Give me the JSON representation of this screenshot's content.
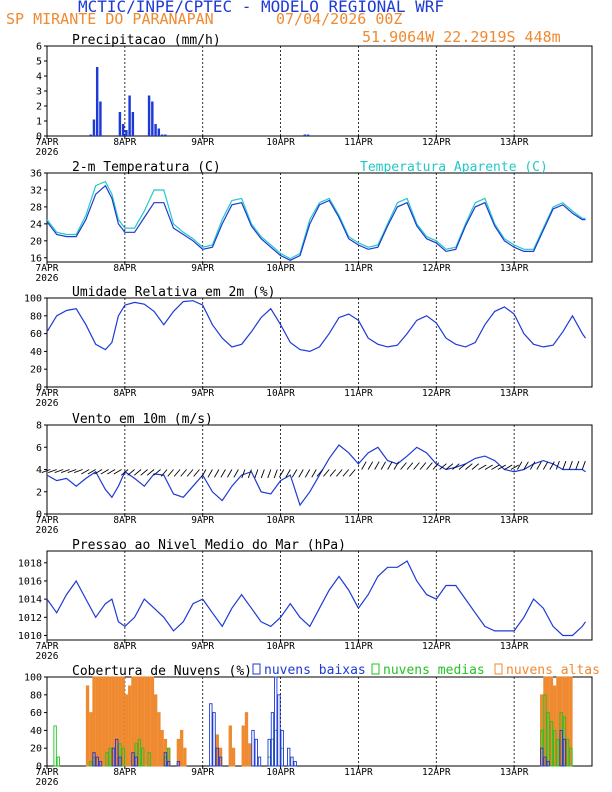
{
  "header": {
    "line1": "MCTIC/INPE/CPTEC - MODELO REGIONAL WRF",
    "station": "SP MIRANTE DO PARANAPAN",
    "datetime": "07/04/2026 00Z",
    "coords": "51.9064W 22.2919S 448m"
  },
  "colors": {
    "blue": "#1d3ad6",
    "orange": "#f08a30",
    "cyan": "#22c8c8",
    "green": "#22c322",
    "black": "#000000"
  },
  "axis": {
    "day_labels": [
      "7APR",
      "8APR",
      "9APR",
      "10APR",
      "11APR",
      "12APR",
      "13APR"
    ],
    "year_label": "2026"
  },
  "chart_data": [
    {
      "id": "precip",
      "type": "bar",
      "title": "Precipitacao (mm/h)",
      "x_unit": "hours since 07/04/2026 00Z",
      "ylim": [
        0,
        6
      ],
      "yticks": [
        0,
        1,
        2,
        3,
        4,
        5,
        6
      ],
      "x": [
        13,
        14,
        15,
        16,
        22,
        23,
        24,
        25,
        26,
        31,
        32,
        33,
        34,
        35,
        36,
        79,
        80
      ],
      "values": [
        0.1,
        1.1,
        4.6,
        2.3,
        1.6,
        0.8,
        0.4,
        2.7,
        1.6,
        2.7,
        2.3,
        0.8,
        0.5,
        0.1,
        0.1,
        0.1,
        0.1
      ]
    },
    {
      "id": "temp",
      "type": "line",
      "title": "2-m Temperatura (C)",
      "ylim": [
        15,
        36
      ],
      "yticks": [
        16,
        20,
        24,
        28,
        32,
        36
      ],
      "series": [
        {
          "name": "Temperatura Aparente (C)",
          "color": "cyan",
          "x": [
            0,
            3,
            6,
            9,
            12,
            15,
            18,
            20,
            22,
            24,
            27,
            30,
            33,
            36,
            39,
            42,
            45,
            48,
            51,
            54,
            57,
            60,
            63,
            66,
            69,
            72,
            75,
            78,
            81,
            84,
            87,
            90,
            93,
            96,
            99,
            102,
            105,
            108,
            111,
            114,
            117,
            120,
            123,
            126,
            129,
            132,
            135,
            138,
            141,
            144,
            147,
            150,
            153,
            156,
            159,
            162,
            165,
            166
          ],
          "values": [
            25,
            22,
            21.5,
            21.5,
            26,
            33,
            34,
            31,
            25,
            23,
            23,
            27,
            32,
            32,
            24,
            22,
            20.5,
            18.5,
            19,
            25,
            29.5,
            30,
            24,
            21,
            19,
            17,
            15.8,
            17,
            25,
            29,
            30,
            26,
            21,
            19.5,
            18.5,
            19,
            24,
            29,
            30,
            24,
            21,
            20,
            18,
            18.5,
            24,
            29,
            30,
            24,
            20.5,
            19,
            18,
            18,
            23,
            28,
            29,
            27,
            25.3,
            25.3
          ]
        },
        {
          "name": "",
          "color": "blue",
          "x": [
            0,
            3,
            6,
            9,
            12,
            15,
            18,
            20,
            22,
            24,
            27,
            30,
            33,
            36,
            39,
            42,
            45,
            48,
            51,
            54,
            57,
            60,
            63,
            66,
            69,
            72,
            75,
            78,
            81,
            84,
            87,
            90,
            93,
            96,
            99,
            102,
            105,
            108,
            111,
            114,
            117,
            120,
            123,
            126,
            129,
            132,
            135,
            138,
            141,
            144,
            147,
            150,
            153,
            156,
            159,
            162,
            165,
            166
          ],
          "values": [
            24.5,
            21.5,
            21,
            21,
            25,
            31,
            33,
            30,
            24,
            22,
            22,
            25.5,
            29,
            29,
            23,
            21.5,
            20,
            18,
            18.5,
            24,
            28.5,
            29,
            23.5,
            20.5,
            18.5,
            16.5,
            15.4,
            16.5,
            24,
            28.5,
            29.5,
            25.5,
            20.5,
            19,
            18,
            18.5,
            23.5,
            28,
            29,
            23.5,
            20.5,
            19.5,
            17.5,
            18,
            23.5,
            28,
            29,
            23.5,
            20,
            18.5,
            17.5,
            17.5,
            22.5,
            27.5,
            28.5,
            26.5,
            25,
            25
          ]
        }
      ]
    },
    {
      "id": "rh",
      "type": "line",
      "title": "Umidade Relativa em 2m (%)",
      "ylim": [
        0,
        100
      ],
      "yticks": [
        0,
        20,
        40,
        60,
        80,
        100
      ],
      "series": [
        {
          "name": "",
          "color": "blue",
          "x": [
            0,
            3,
            6,
            9,
            12,
            15,
            18,
            20,
            22,
            24,
            27,
            30,
            33,
            36,
            39,
            42,
            45,
            48,
            51,
            54,
            57,
            60,
            63,
            66,
            69,
            72,
            75,
            78,
            81,
            84,
            87,
            90,
            93,
            96,
            99,
            102,
            105,
            108,
            111,
            114,
            117,
            120,
            123,
            126,
            129,
            132,
            135,
            138,
            141,
            144,
            147,
            150,
            153,
            156,
            159,
            162,
            165,
            166
          ],
          "values": [
            62,
            80,
            86,
            88,
            70,
            48,
            42,
            50,
            80,
            92,
            95,
            93,
            85,
            70,
            85,
            96,
            97,
            92,
            70,
            55,
            45,
            48,
            62,
            78,
            88,
            70,
            50,
            42,
            40,
            45,
            60,
            78,
            82,
            75,
            55,
            48,
            45,
            47,
            60,
            75,
            80,
            72,
            55,
            48,
            45,
            50,
            70,
            85,
            90,
            82,
            60,
            48,
            45,
            47,
            62,
            80,
            60,
            55
          ]
        }
      ]
    },
    {
      "id": "wind",
      "type": "line",
      "title": "Vento em 10m (m/s)",
      "ylim": [
        0,
        8
      ],
      "yticks": [
        0,
        2,
        4,
        6,
        8
      ],
      "series": [
        {
          "name": "",
          "color": "blue",
          "x": [
            0,
            3,
            6,
            9,
            12,
            15,
            18,
            20,
            22,
            24,
            27,
            30,
            33,
            36,
            39,
            42,
            45,
            48,
            51,
            54,
            57,
            60,
            63,
            66,
            69,
            72,
            75,
            78,
            81,
            84,
            87,
            90,
            93,
            96,
            99,
            102,
            105,
            108,
            111,
            114,
            117,
            120,
            123,
            126,
            129,
            132,
            135,
            138,
            141,
            144,
            147,
            150,
            153,
            156,
            159,
            162,
            165,
            166
          ],
          "values": [
            3.5,
            3,
            3.2,
            2.5,
            3.2,
            3.8,
            2.2,
            1.5,
            2.5,
            3.8,
            3.2,
            2.5,
            3.6,
            3.5,
            1.8,
            1.5,
            2.5,
            3.5,
            2,
            1.2,
            2.5,
            3.5,
            3.8,
            2,
            1.8,
            3,
            3.5,
            0.8,
            2,
            3.5,
            5,
            6.2,
            5.5,
            4.5,
            5.5,
            6,
            4.8,
            4.5,
            5.2,
            6,
            5.5,
            4.5,
            4,
            4.2,
            4.5,
            5,
            5.2,
            4.8,
            4,
            3.8,
            4,
            4.5,
            4.8,
            4.5,
            4,
            4,
            4,
            3.8
          ]
        }
      ]
    },
    {
      "id": "pressure",
      "type": "line",
      "title": "Pressao ao Nivel Medio do Mar (hPa)",
      "ylim": [
        1009.5,
        1019.3
      ],
      "yticks": [
        1010,
        1012,
        1014,
        1016,
        1018
      ],
      "series": [
        {
          "name": "",
          "color": "blue",
          "x": [
            0,
            3,
            6,
            9,
            12,
            15,
            18,
            20,
            22,
            24,
            27,
            30,
            33,
            36,
            39,
            42,
            45,
            48,
            51,
            54,
            57,
            60,
            63,
            66,
            69,
            72,
            75,
            78,
            81,
            84,
            87,
            90,
            93,
            96,
            99,
            102,
            105,
            108,
            111,
            114,
            117,
            120,
            123,
            126,
            129,
            132,
            135,
            138,
            141,
            144,
            147,
            150,
            153,
            156,
            159,
            162,
            165,
            166
          ],
          "values": [
            1014,
            1012.5,
            1014.5,
            1016,
            1014,
            1012,
            1013.5,
            1014,
            1011.5,
            1011,
            1012,
            1014,
            1013,
            1012,
            1010.5,
            1011.5,
            1013.5,
            1014,
            1012.5,
            1011,
            1013,
            1014.5,
            1013,
            1011.5,
            1011,
            1012,
            1013.5,
            1012,
            1011,
            1013,
            1015,
            1016.5,
            1015,
            1013,
            1014.5,
            1016.5,
            1017.5,
            1017.5,
            1018.2,
            1016,
            1014.5,
            1014,
            1015.5,
            1015.5,
            1014,
            1012.5,
            1011,
            1010.5,
            1010.5,
            1010.5,
            1012,
            1014,
            1013,
            1011,
            1010,
            1010,
            1011,
            1011.5
          ]
        }
      ]
    },
    {
      "id": "clouds",
      "type": "bar",
      "title": "Cobertura de Nuvens (%)",
      "ylim": [
        0,
        100
      ],
      "yticks": [
        0,
        20,
        40,
        60,
        80,
        100
      ],
      "series": [
        {
          "name": "nuvens baixas",
          "color": "blue",
          "x": [
            14,
            15,
            16,
            20,
            21,
            22,
            26,
            27,
            36,
            37,
            40,
            50,
            51,
            52,
            53,
            63,
            64,
            65,
            68,
            69,
            70,
            71,
            72,
            74,
            75,
            76,
            152,
            153,
            154,
            158,
            159
          ],
          "values": [
            15,
            10,
            5,
            20,
            30,
            10,
            15,
            10,
            15,
            5,
            5,
            70,
            60,
            20,
            10,
            40,
            30,
            10,
            30,
            60,
            100,
            80,
            40,
            20,
            10,
            5,
            20,
            10,
            5,
            40,
            30
          ]
        },
        {
          "name": "nuvens medias",
          "color": "green",
          "x": [
            2,
            3,
            13,
            14,
            18,
            19,
            22,
            23,
            27,
            28,
            29,
            31,
            36,
            37,
            68,
            69,
            70,
            72,
            152,
            153,
            154,
            155,
            156,
            157,
            158,
            159,
            160,
            161
          ],
          "values": [
            45,
            10,
            5,
            10,
            15,
            20,
            25,
            20,
            25,
            30,
            20,
            15,
            10,
            20,
            10,
            30,
            40,
            20,
            40,
            80,
            60,
            50,
            40,
            30,
            60,
            55,
            30,
            20
          ]
        },
        {
          "name": "nuvens altas",
          "color": "orange",
          "x": [
            12,
            13,
            14,
            15,
            16,
            17,
            18,
            19,
            20,
            21,
            22,
            23,
            24,
            25,
            26,
            27,
            28,
            29,
            30,
            31,
            32,
            33,
            34,
            35,
            36,
            37,
            40,
            41,
            42,
            52,
            53,
            56,
            57,
            60,
            61,
            62,
            152,
            153,
            154,
            155,
            156,
            157,
            158,
            159,
            160,
            161
          ],
          "values": [
            90,
            60,
            100,
            100,
            100,
            100,
            100,
            100,
            100,
            100,
            100,
            100,
            80,
            90,
            100,
            100,
            100,
            100,
            100,
            100,
            100,
            80,
            60,
            40,
            30,
            20,
            30,
            40,
            20,
            35,
            20,
            45,
            20,
            45,
            60,
            25,
            80,
            100,
            100,
            100,
            90,
            100,
            100,
            100,
            100,
            100
          ]
        }
      ]
    }
  ]
}
